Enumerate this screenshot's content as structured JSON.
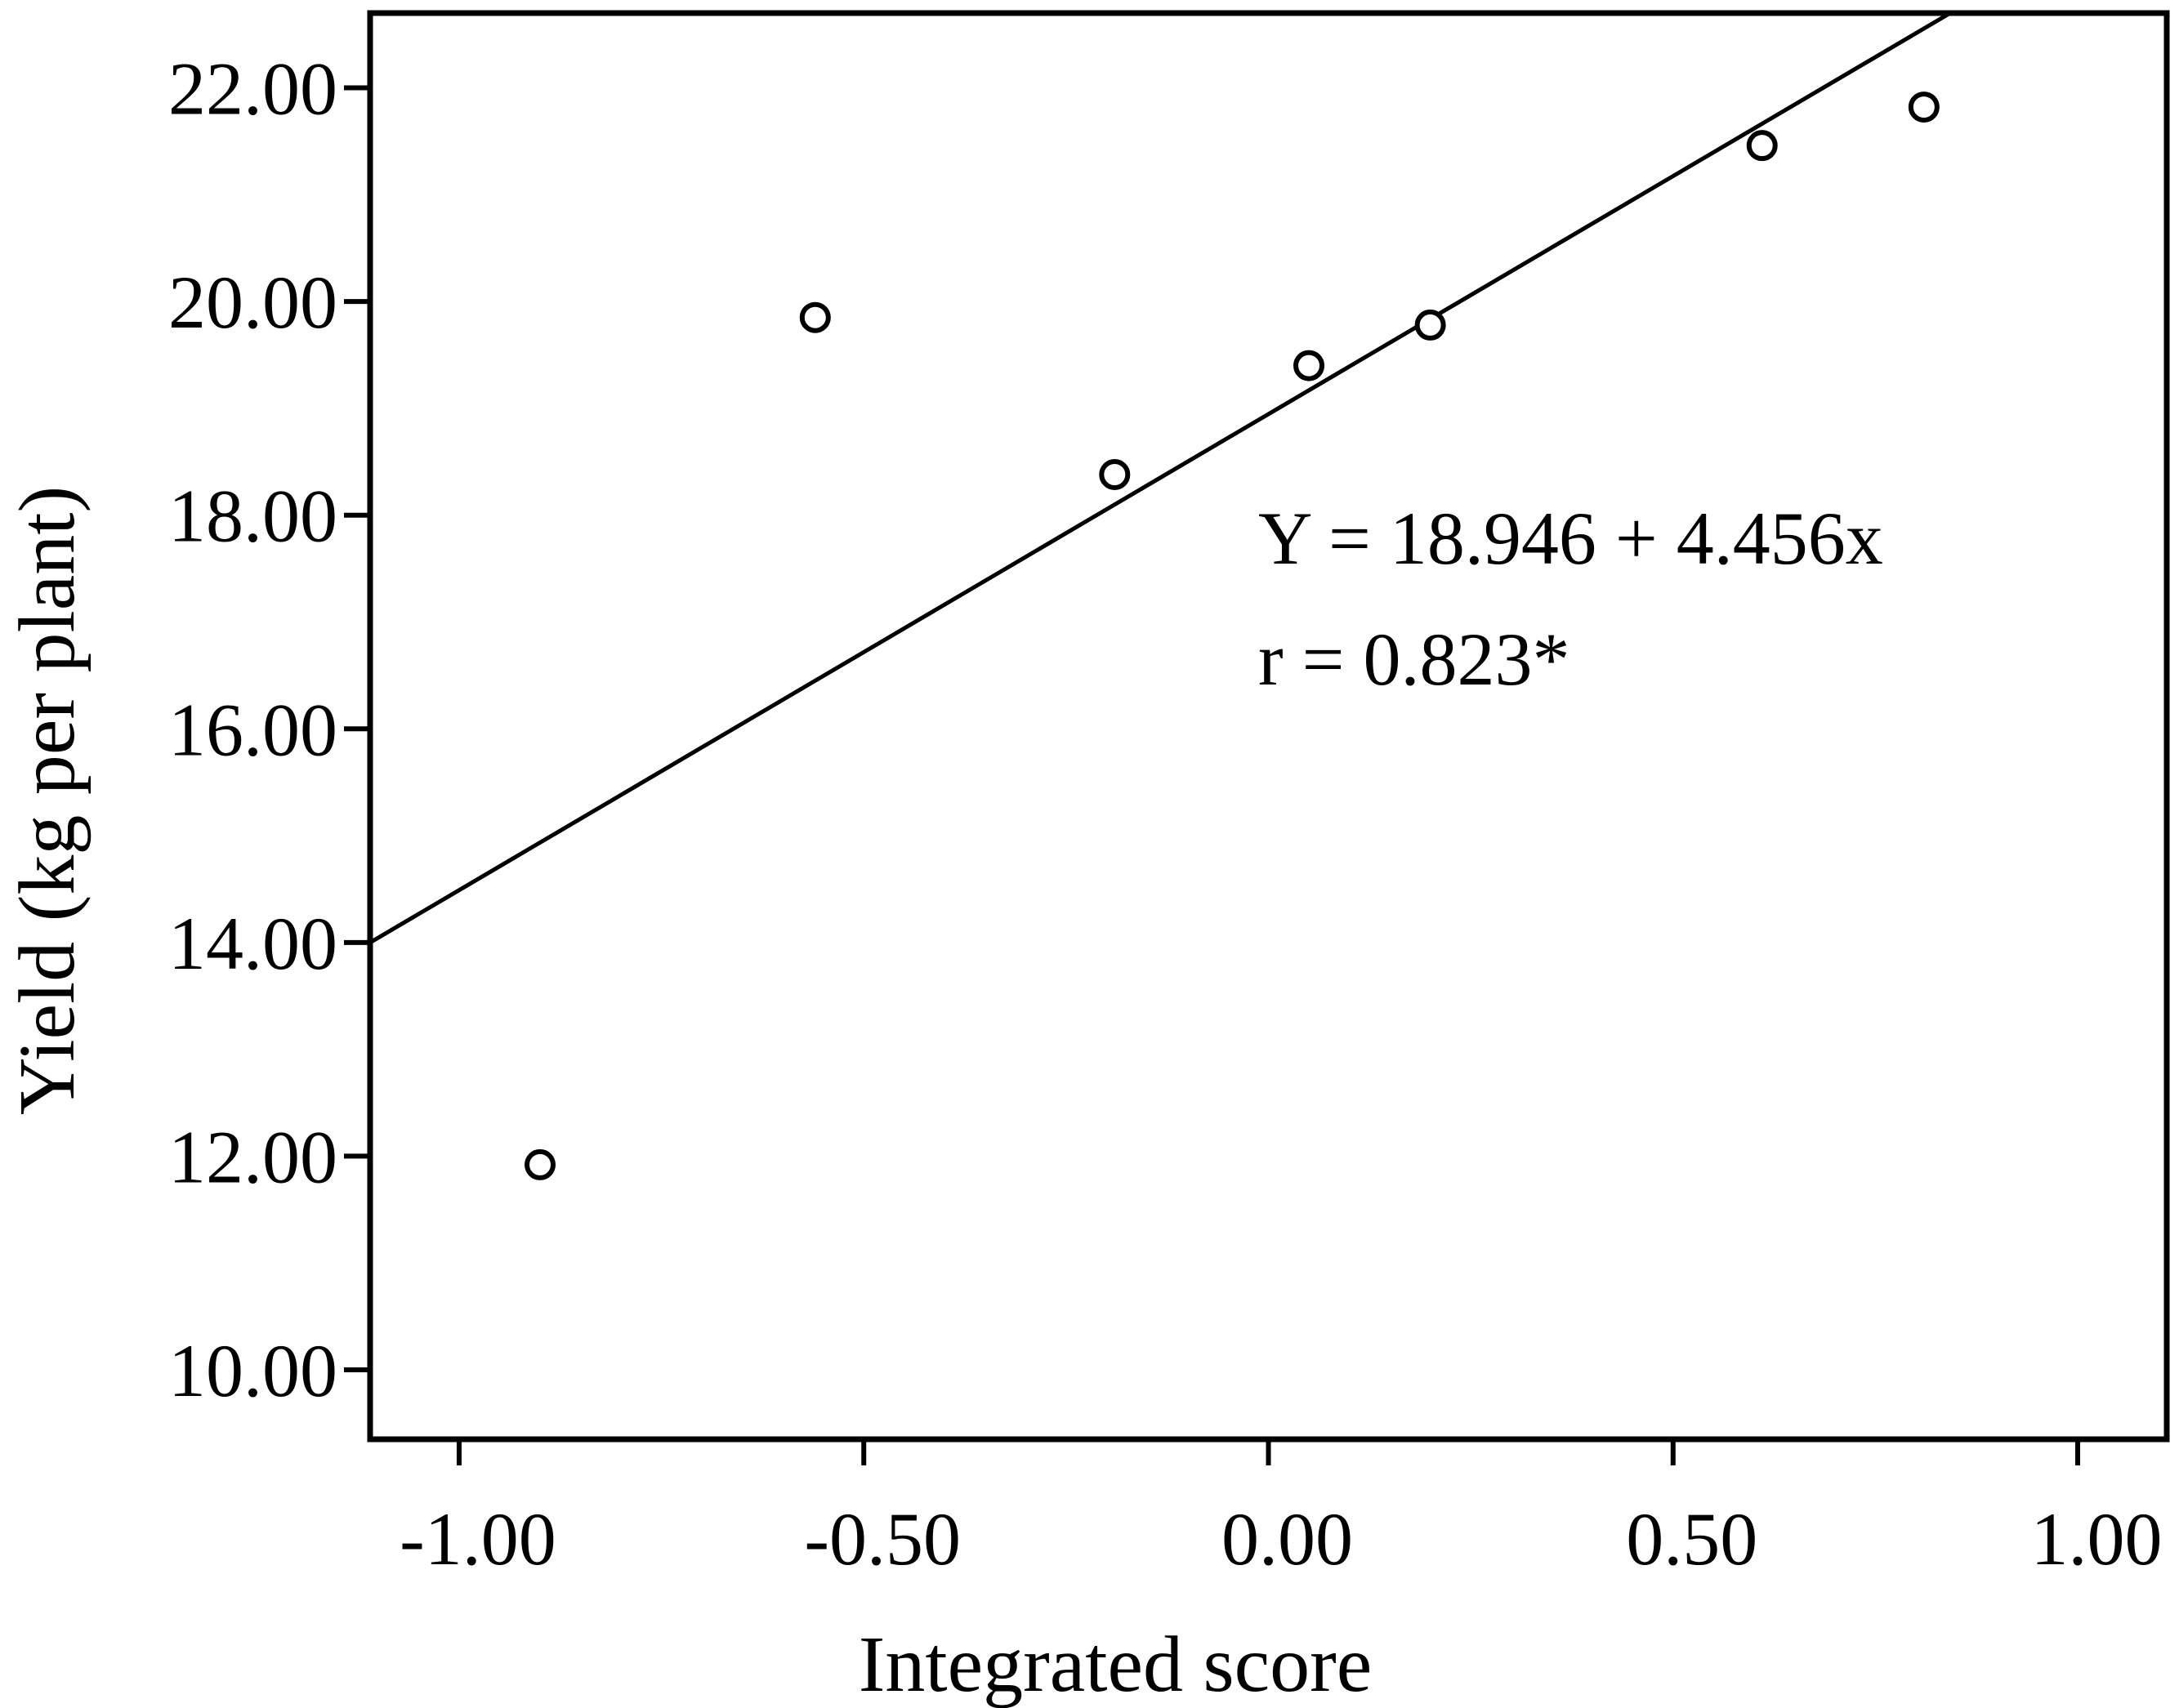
{
  "chart_data": {
    "type": "scatter",
    "title": "",
    "xlabel": "Integrated score",
    "ylabel": "Yield (kg per plant)",
    "xlim": [
      -1.11,
      1.11
    ],
    "ylim": [
      9.35,
      22.7
    ],
    "x_ticks": [
      -1.0,
      -0.5,
      0.0,
      0.5,
      1.0
    ],
    "x_tick_labels": [
      "-1.00",
      "-0.50",
      "0.00",
      "0.50",
      "1.00"
    ],
    "y_ticks": [
      10,
      12,
      14,
      16,
      18,
      20,
      22
    ],
    "y_tick_labels": [
      "10.00",
      "12.00",
      "14.00",
      "16.00",
      "18.00",
      "20.00",
      "22.00"
    ],
    "grid": false,
    "series": [
      {
        "points": [
          {
            "x": -0.9,
            "y": 11.92
          },
          {
            "x": -0.56,
            "y": 19.85
          },
          {
            "x": -0.19,
            "y": 18.38
          },
          {
            "x": 0.05,
            "y": 19.4
          },
          {
            "x": 0.2,
            "y": 19.78
          },
          {
            "x": 0.61,
            "y": 21.46
          },
          {
            "x": 0.81,
            "y": 21.82
          }
        ]
      }
    ],
    "fit_line": {
      "intercept": 18.946,
      "slope": 4.456
    },
    "annotations": [
      "Y = 18.946 + 4.456x",
      "r = 0.823*"
    ]
  }
}
